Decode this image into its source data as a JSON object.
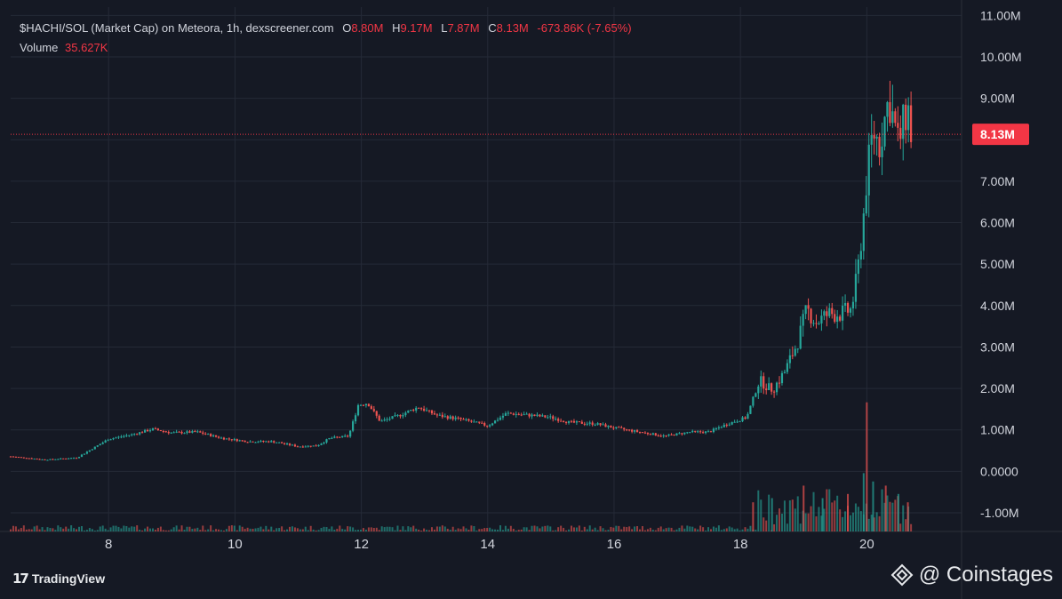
{
  "header": {
    "pair": "$HACHI/SOL (Market Cap) on Meteora, 1h, dexscreener.com",
    "o_label": "O",
    "o_value": "8.80M",
    "h_label": "H",
    "h_value": "9.17M",
    "l_label": "L",
    "l_value": "7.87M",
    "c_label": "C",
    "c_value": "8.13M",
    "change": "-673.86K (-7.65%)",
    "volume_label": "Volume",
    "volume_value": "35.627K"
  },
  "price_tag": "8.13M",
  "footer": {
    "tradingview_label": "TradingView",
    "watermark": "@ Coinstages"
  },
  "colors": {
    "background": "#151924",
    "up": "#26a69a",
    "down": "#ef5350",
    "grid": "#252a37",
    "tag": "#f23645"
  },
  "chart_data": {
    "type": "candlestick",
    "title": "$HACHI/SOL (Market Cap) on Meteora, 1h, dexscreener.com",
    "x_ticks": [
      "8",
      "10",
      "12",
      "14",
      "16",
      "18",
      "20"
    ],
    "x_tick_days": [
      8,
      10,
      12,
      14,
      16,
      18,
      20
    ],
    "x_range_days": [
      6.45,
      21.5
    ],
    "y_ticks": [
      "11.00M",
      "10.00M",
      "9.00M",
      "8.00M",
      "7.00M",
      "6.00M",
      "5.00M",
      "4.00M",
      "3.00M",
      "2.00M",
      "1.00M",
      "0.0000",
      "-1.00M"
    ],
    "y_tick_values": [
      11,
      10,
      9,
      8,
      7,
      6,
      5,
      4,
      3,
      2,
      1,
      0,
      -1
    ],
    "y_range_millions": [
      -1.45,
      11.2
    ],
    "last_close_millions": 8.13,
    "grid": true,
    "close_path_day_millions": [
      [
        6.45,
        0.36
      ],
      [
        7.0,
        0.28
      ],
      [
        7.5,
        0.33
      ],
      [
        8.0,
        0.78
      ],
      [
        8.4,
        0.9
      ],
      [
        8.7,
        1.02
      ],
      [
        9.0,
        0.93
      ],
      [
        9.4,
        0.95
      ],
      [
        9.8,
        0.8
      ],
      [
        10.2,
        0.72
      ],
      [
        10.6,
        0.72
      ],
      [
        11.0,
        0.6
      ],
      [
        11.3,
        0.62
      ],
      [
        11.5,
        0.8
      ],
      [
        11.8,
        0.85
      ],
      [
        11.95,
        1.6
      ],
      [
        12.1,
        1.65
      ],
      [
        12.3,
        1.2
      ],
      [
        12.6,
        1.35
      ],
      [
        12.9,
        1.55
      ],
      [
        13.2,
        1.35
      ],
      [
        13.6,
        1.25
      ],
      [
        14.0,
        1.1
      ],
      [
        14.3,
        1.4
      ],
      [
        14.7,
        1.35
      ],
      [
        15.0,
        1.3
      ],
      [
        15.3,
        1.18
      ],
      [
        15.7,
        1.15
      ],
      [
        16.0,
        1.05
      ],
      [
        16.4,
        0.95
      ],
      [
        16.8,
        0.85
      ],
      [
        17.2,
        0.95
      ],
      [
        17.5,
        0.95
      ],
      [
        17.8,
        1.15
      ],
      [
        18.1,
        1.3
      ],
      [
        18.3,
        2.2
      ],
      [
        18.5,
        1.95
      ],
      [
        18.7,
        2.4
      ],
      [
        18.9,
        3.1
      ],
      [
        19.05,
        3.9
      ],
      [
        19.2,
        3.6
      ],
      [
        19.4,
        3.8
      ],
      [
        19.6,
        3.8
      ],
      [
        19.75,
        3.9
      ],
      [
        19.85,
        4.7
      ],
      [
        19.95,
        6.2
      ],
      [
        20.0,
        7.1
      ],
      [
        20.1,
        8.2
      ],
      [
        20.2,
        7.9
      ],
      [
        20.35,
        9.0
      ],
      [
        20.5,
        7.9
      ],
      [
        20.65,
        8.8
      ],
      [
        20.7,
        8.13
      ]
    ],
    "volume_spikes_day_millions": [
      [
        18.2,
        0.35
      ],
      [
        18.5,
        0.4
      ],
      [
        19.0,
        0.55
      ],
      [
        19.3,
        0.4
      ],
      [
        19.7,
        0.45
      ],
      [
        19.95,
        0.7
      ],
      [
        20.0,
        1.55
      ],
      [
        20.1,
        0.6
      ],
      [
        20.3,
        0.55
      ],
      [
        20.5,
        0.45
      ],
      [
        20.65,
        0.35
      ]
    ]
  }
}
